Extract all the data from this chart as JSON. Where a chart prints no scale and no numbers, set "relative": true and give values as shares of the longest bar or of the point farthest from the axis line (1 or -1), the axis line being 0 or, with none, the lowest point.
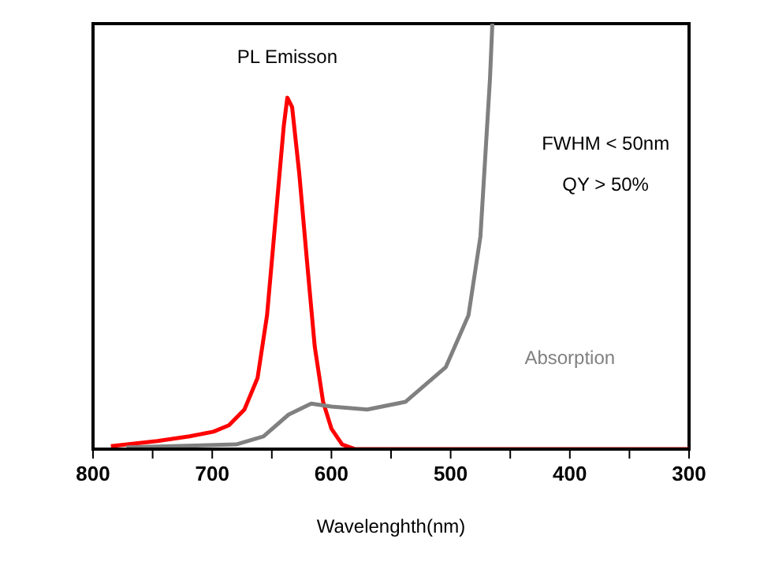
{
  "chart_data": {
    "type": "line",
    "xlabel": "Wavelenghth(nm)",
    "relative": true,
    "marker": "none",
    "line_style": "solid",
    "xlim": [
      800,
      300
    ],
    "xticks": [
      800,
      {
        "value": 750,
        "label": null
      },
      700,
      {
        "value": 650,
        "label": null
      },
      600,
      {
        "value": 550,
        "label": null
      },
      500,
      {
        "value": 450,
        "label": null
      },
      400,
      {
        "value": 350,
        "label": null
      },
      300
    ],
    "annotations": [
      "FWHM < 50nm",
      "QY > 50%"
    ],
    "series": [
      {
        "name": "PL Emisson",
        "color": "#ff0000",
        "x": [
          785,
          746,
          719,
          699,
          686,
          673,
          662,
          654,
          647,
          640,
          637,
          633,
          627,
          620,
          614,
          607,
          600,
          591,
          580,
          500,
          300
        ],
        "values": [
          0.007,
          0.019,
          0.03,
          0.041,
          0.056,
          0.093,
          0.167,
          0.315,
          0.537,
          0.759,
          0.826,
          0.804,
          0.648,
          0.426,
          0.241,
          0.111,
          0.048,
          0.011,
          0,
          0,
          0
        ]
      },
      {
        "name": "Absorption",
        "color": "#808080",
        "x": [
          772,
          680,
          657,
          636,
          617,
          600,
          570,
          538,
          504,
          485,
          475,
          471,
          467,
          465
        ],
        "values": [
          0.004,
          0.011,
          0.03,
          0.081,
          0.107,
          0.1,
          0.093,
          0.111,
          0.193,
          0.315,
          0.5,
          0.685,
          0.87,
          1
        ]
      }
    ]
  }
}
